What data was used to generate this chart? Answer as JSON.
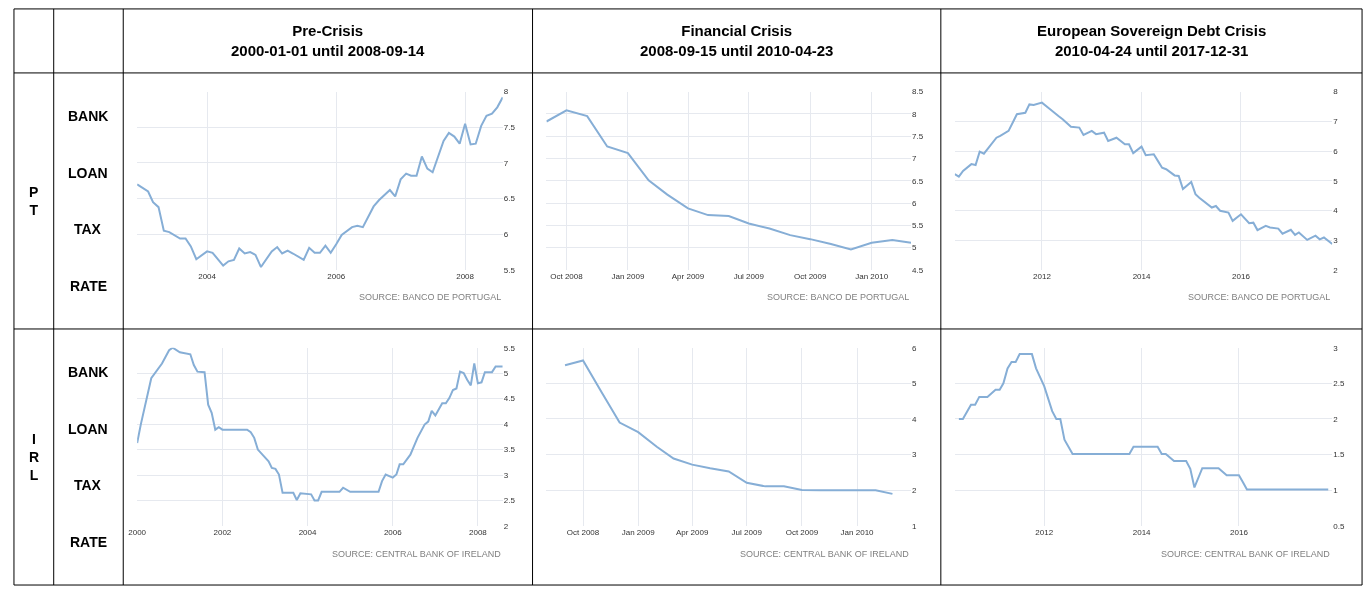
{
  "chart_data": [
    {
      "type": "line",
      "title": "Pre-Crisis",
      "subtitle": "2000-01-01 until 2008-09-14",
      "ylabel": "BANK LOAN TAX RATE",
      "annotations": [
        "PT",
        "SOURCE: BANCO DE PORTUGAL"
      ],
      "x": [
        "2002-12",
        "2003-02",
        "2003-03",
        "2003-04",
        "2003-05",
        "2003-06",
        "2003-08",
        "2003-09",
        "2003-10",
        "2003-11",
        "2004-01",
        "2004-02",
        "2004-04",
        "2004-05",
        "2004-06",
        "2004-07",
        "2004-08",
        "2004-09",
        "2004-10",
        "2004-11",
        "2005-01",
        "2005-02",
        "2005-03",
        "2005-04",
        "2005-05",
        "2005-07",
        "2005-08",
        "2005-09",
        "2005-10",
        "2005-11",
        "2005-12",
        "2006-01",
        "2006-02",
        "2006-04",
        "2006-05",
        "2006-06",
        "2006-08",
        "2006-09",
        "2006-11",
        "2006-12",
        "2007-01",
        "2007-02",
        "2007-03",
        "2007-04",
        "2007-05",
        "2007-06",
        "2007-07",
        "2007-09",
        "2007-10",
        "2007-11",
        "2007-12",
        "2008-01",
        "2008-02",
        "2008-03",
        "2008-04",
        "2008-05",
        "2008-06",
        "2008-07",
        "2008-08"
      ],
      "series": [
        {
          "color": "#86aed6",
          "values": [
            6.7,
            6.6,
            6.45,
            6.38,
            6.05,
            6.03,
            5.94,
            5.94,
            5.83,
            5.65,
            5.76,
            5.74,
            5.56,
            5.62,
            5.64,
            5.8,
            5.73,
            5.75,
            5.71,
            5.54,
            5.76,
            5.82,
            5.73,
            5.77,
            5.73,
            5.64,
            5.81,
            5.74,
            5.74,
            5.84,
            5.74,
            5.86,
            5.99,
            6.1,
            6.12,
            6.1,
            6.39,
            6.48,
            6.62,
            6.53,
            6.77,
            6.85,
            6.82,
            6.82,
            7.09,
            6.92,
            6.87,
            7.31,
            7.42,
            7.37,
            7.27,
            7.55,
            7.26,
            7.27,
            7.52,
            7.66,
            7.69,
            7.78,
            7.92
          ]
        }
      ],
      "xlim": [
        "2002-12",
        "2008-08"
      ],
      "xticks": [
        {
          "value": "2004",
          "label": "2004"
        },
        {
          "value": "2006",
          "label": "2006"
        },
        {
          "value": "2008",
          "label": "2008"
        }
      ],
      "ylim": [
        5.5,
        8
      ],
      "yticks": [
        5.5,
        6,
        6.5,
        7,
        7.5,
        8
      ],
      "grid": true,
      "marker": "none",
      "line_style": "solid"
    },
    {
      "type": "line",
      "title": "Financial Crisis",
      "subtitle": "2008-09-15 until 2010-04-23",
      "annotations": [
        "SOURCE: BANCO DE PORTUGAL"
      ],
      "x": [
        "2008-09",
        "2008-10",
        "2008-11",
        "2008-12",
        "2009-01",
        "2009-02",
        "2009-03",
        "2009-04",
        "2009-05",
        "2009-06",
        "2009-07",
        "2009-08",
        "2009-09",
        "2009-10",
        "2009-11",
        "2009-12",
        "2010-01",
        "2010-02",
        "2010-03"
      ],
      "series": [
        {
          "color": "#86aed6",
          "values": [
            7.83,
            8.08,
            7.95,
            7.27,
            7.12,
            6.51,
            6.19,
            5.88,
            5.73,
            5.71,
            5.54,
            5.43,
            5.28,
            5.19,
            5.08,
            4.96,
            5.11,
            5.17,
            5.11
          ]
        }
      ],
      "xlim": [
        "2008-09",
        "2010-03"
      ],
      "xticks": [
        {
          "value": "2008-10",
          "label": "Oct 2008"
        },
        {
          "value": "2009-01",
          "label": "Jan 2009"
        },
        {
          "value": "2009-04",
          "label": "Apr 2009"
        },
        {
          "value": "2009-07",
          "label": "Jul 2009"
        },
        {
          "value": "2009-10",
          "label": "Oct 2009"
        },
        {
          "value": "2010-01",
          "label": "Jan 2010"
        }
      ],
      "ylim": [
        4.5,
        8.5
      ],
      "yticks": [
        4.5,
        5,
        5.5,
        6,
        6.5,
        7,
        7.5,
        8,
        8.5
      ],
      "grid": true,
      "marker": "none",
      "line_style": "solid"
    },
    {
      "type": "line",
      "title": "European Sovereign Debt Crisis",
      "subtitle": "2010-04-24 until 2017-12-31",
      "annotations": [
        "SOURCE: BANCO DE PORTUGAL"
      ],
      "x": [
        "2010-04",
        "2010-05",
        "2010-06",
        "2010-08",
        "2010-09",
        "2010-10",
        "2010-11",
        "2011-02",
        "2011-03",
        "2011-05",
        "2011-06",
        "2011-07",
        "2011-09",
        "2011-10",
        "2011-11",
        "2012-01",
        "2012-03",
        "2012-05",
        "2012-06",
        "2012-08",
        "2012-10",
        "2012-11",
        "2013-01",
        "2013-02",
        "2013-04",
        "2013-05",
        "2013-07",
        "2013-09",
        "2013-10",
        "2013-11",
        "2014-01",
        "2014-02",
        "2014-04",
        "2014-05",
        "2014-06",
        "2014-07",
        "2014-09",
        "2014-10",
        "2014-11",
        "2015-01",
        "2015-02",
        "2015-03",
        "2015-06",
        "2015-07",
        "2015-08",
        "2015-10",
        "2015-11",
        "2016-01",
        "2016-03",
        "2016-04",
        "2016-05",
        "2016-07",
        "2016-08",
        "2016-10",
        "2016-11",
        "2017-01",
        "2017-02",
        "2017-03",
        "2017-05",
        "2017-07",
        "2017-08",
        "2017-09",
        "2017-11"
      ],
      "series": [
        {
          "color": "#86aed6",
          "values": [
            5.22,
            5.14,
            5.33,
            5.56,
            5.53,
            5.98,
            5.91,
            6.45,
            6.51,
            6.68,
            6.96,
            7.24,
            7.29,
            7.57,
            7.55,
            7.63,
            7.41,
            7.18,
            7.07,
            6.82,
            6.79,
            6.54,
            6.68,
            6.57,
            6.62,
            6.34,
            6.45,
            6.23,
            6.23,
            5.93,
            6.15,
            5.86,
            5.89,
            5.67,
            5.44,
            5.39,
            5.18,
            5.16,
            4.72,
            4.96,
            4.55,
            4.43,
            4.1,
            4.15,
            3.99,
            3.93,
            3.65,
            3.87,
            3.57,
            3.59,
            3.34,
            3.48,
            3.43,
            3.39,
            3.22,
            3.35,
            3.18,
            3.26,
            3.01,
            3.15,
            3.03,
            3.09,
            2.87
          ]
        }
      ],
      "xlim": [
        "2010-04",
        "2017-11"
      ],
      "xticks": [
        {
          "value": "2012",
          "label": "2012"
        },
        {
          "value": "2014",
          "label": "2014"
        },
        {
          "value": "2016",
          "label": "2016"
        }
      ],
      "ylim": [
        2,
        8
      ],
      "yticks": [
        2,
        3,
        4,
        5,
        6,
        7,
        8
      ],
      "grid": true,
      "marker": "none",
      "line_style": "solid"
    },
    {
      "type": "line",
      "ylabel": "BANK LOAN TAX RATE",
      "annotations": [
        "IRL",
        "SOURCE: CENTRAL BANK OF IRELAND"
      ],
      "x": [
        "2000-01",
        "2000-02",
        "2000-05",
        "2000-08",
        "2000-10",
        "2000-11",
        "2001-01",
        "2001-04",
        "2001-05",
        "2001-06",
        "2001-08",
        "2001-09",
        "2001-10",
        "2001-11",
        "2001-12",
        "2002-01",
        "2002-08",
        "2002-09",
        "2002-10",
        "2002-11",
        "2003-02",
        "2003-03",
        "2003-04",
        "2003-05",
        "2003-06",
        "2003-09",
        "2003-10",
        "2003-11",
        "2004-02",
        "2004-03",
        "2004-04",
        "2004-05",
        "2004-10",
        "2004-11",
        "2005-01",
        "2005-09",
        "2005-10",
        "2005-11",
        "2006-01",
        "2006-02",
        "2006-03",
        "2006-04",
        "2006-06",
        "2006-08",
        "2006-10",
        "2006-11",
        "2006-12",
        "2007-01",
        "2007-03",
        "2007-04",
        "2007-05",
        "2007-06",
        "2007-07",
        "2007-08",
        "2007-09",
        "2007-10",
        "2007-11",
        "2007-12",
        "2008-01",
        "2008-02",
        "2008-03",
        "2008-05",
        "2008-06",
        "2008-08"
      ],
      "series": [
        {
          "color": "#86aed6",
          "values": [
            3.63,
            3.99,
            4.9,
            5.19,
            5.45,
            5.5,
            5.41,
            5.37,
            5.16,
            5.03,
            5.02,
            4.38,
            4.22,
            3.89,
            3.94,
            3.89,
            3.89,
            3.84,
            3.73,
            3.5,
            3.27,
            3.14,
            3.12,
            3.01,
            2.65,
            2.65,
            2.51,
            2.64,
            2.62,
            2.5,
            2.5,
            2.67,
            2.67,
            2.75,
            2.67,
            2.67,
            2.88,
            3.01,
            2.95,
            3.01,
            3.21,
            3.21,
            3.4,
            3.73,
            3.99,
            4.05,
            4.26,
            4.17,
            4.41,
            4.41,
            4.51,
            4.67,
            4.7,
            5.03,
            5.0,
            4.87,
            4.76,
            5.19,
            4.8,
            4.82,
            5.02,
            5.02,
            5.13,
            5.13
          ]
        }
      ],
      "xlim": [
        "2000-01",
        "2008-08"
      ],
      "xticks": [
        {
          "value": "2000",
          "label": "2000"
        },
        {
          "value": "2002",
          "label": "2002"
        },
        {
          "value": "2004",
          "label": "2004"
        },
        {
          "value": "2006",
          "label": "2006"
        },
        {
          "value": "2008",
          "label": "2008"
        }
      ],
      "ylim": [
        2,
        5.5
      ],
      "yticks": [
        2,
        2.5,
        3,
        3.5,
        4,
        4.5,
        5,
        5.5
      ],
      "grid": true,
      "marker": "none",
      "line_style": "solid"
    },
    {
      "type": "line",
      "annotations": [
        "SOURCE: CENTRAL BANK OF IRELAND"
      ],
      "x": [
        "2008-09",
        "2008-10",
        "2008-11",
        "2008-12",
        "2009-01",
        "2009-02",
        "2009-03",
        "2009-04",
        "2009-05",
        "2009-06",
        "2009-07",
        "2009-08",
        "2009-09",
        "2009-10",
        "2009-11",
        "2009-12",
        "2010-01",
        "2010-02",
        "2010-03"
      ],
      "series": [
        {
          "color": "#86aed6",
          "values": [
            5.51,
            5.64,
            4.75,
            3.9,
            3.63,
            3.22,
            2.89,
            2.72,
            2.62,
            2.53,
            2.21,
            2.11,
            2.11,
            2.01,
            2.0,
            2.0,
            2.0,
            2.0,
            1.9
          ]
        }
      ],
      "xlim": [
        "2008-08",
        "2010-04"
      ],
      "xticks": [
        {
          "value": "2008-10",
          "label": "Oct 2008"
        },
        {
          "value": "2009-01",
          "label": "Jan 2009"
        },
        {
          "value": "2009-04",
          "label": "Apr 2009"
        },
        {
          "value": "2009-07",
          "label": "Jul 2009"
        },
        {
          "value": "2009-10",
          "label": "Oct 2009"
        },
        {
          "value": "2010-01",
          "label": "Jan 2010"
        }
      ],
      "ylim": [
        1,
        6
      ],
      "yticks": [
        1,
        2,
        3,
        4,
        5,
        6
      ],
      "grid": true,
      "marker": "none",
      "line_style": "solid"
    },
    {
      "type": "line",
      "annotations": [
        "SOURCE: CENTRAL BANK OF IRELAND"
      ],
      "x": [
        "2010-04",
        "2010-05",
        "2010-07",
        "2010-08",
        "2010-09",
        "2010-11",
        "2011-01",
        "2011-02",
        "2011-03",
        "2011-04",
        "2011-05",
        "2011-06",
        "2011-07",
        "2011-10",
        "2011-11",
        "2012-01",
        "2012-03",
        "2012-04",
        "2012-05",
        "2012-06",
        "2012-08",
        "2013-10",
        "2013-11",
        "2014-05",
        "2014-06",
        "2014-07",
        "2014-09",
        "2014-12",
        "2015-01",
        "2015-02",
        "2015-04",
        "2015-08",
        "2015-10",
        "2016-01",
        "2016-02",
        "2016-03",
        "2017-11"
      ],
      "series": [
        {
          "color": "#86aed6",
          "values": [
            2.0,
            2.0,
            2.2,
            2.2,
            2.31,
            2.31,
            2.41,
            2.41,
            2.5,
            2.71,
            2.8,
            2.8,
            2.91,
            2.91,
            2.71,
            2.46,
            2.11,
            2.0,
            2.0,
            1.71,
            1.51,
            1.51,
            1.61,
            1.61,
            1.51,
            1.51,
            1.41,
            1.41,
            1.3,
            1.04,
            1.31,
            1.31,
            1.21,
            1.21,
            1.11,
            1.01,
            1.01
          ]
        }
      ],
      "xlim": [
        "2010-03",
        "2017-12"
      ],
      "xticks": [
        {
          "value": "2012",
          "label": "2012"
        },
        {
          "value": "2014",
          "label": "2014"
        },
        {
          "value": "2016",
          "label": "2016"
        }
      ],
      "ylim": [
        0.5,
        3
      ],
      "yticks": [
        0.5,
        1,
        1.5,
        2,
        2.5,
        3
      ],
      "grid": true,
      "marker": "none",
      "line_style": "solid"
    }
  ]
}
